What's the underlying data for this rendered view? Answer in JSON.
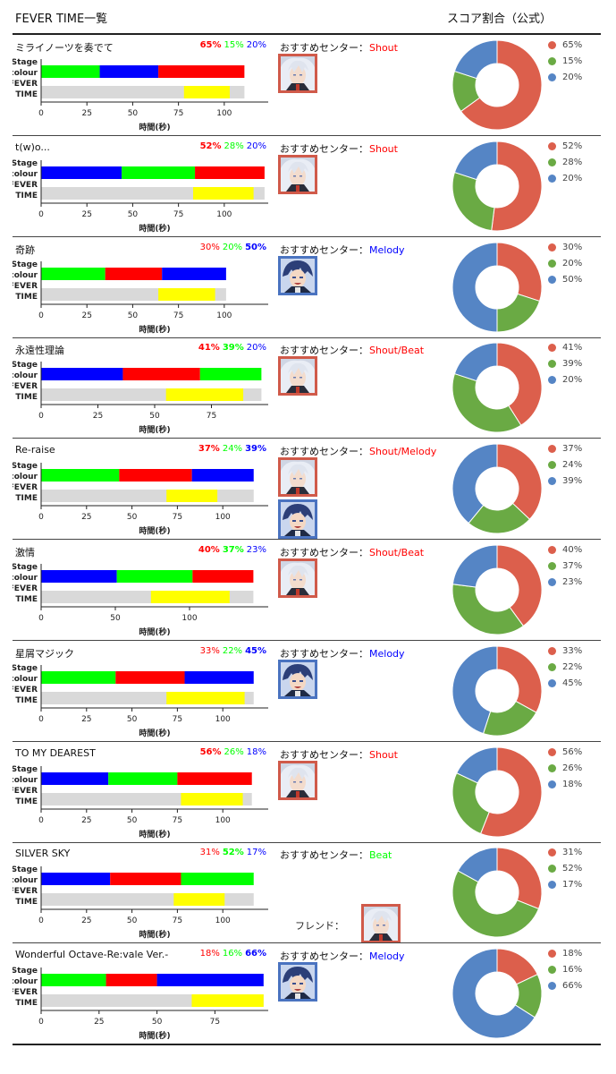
{
  "header": {
    "left": "FEVER TIME一覧",
    "right": "スコア割合（公式）"
  },
  "labels": {
    "stage_a": "Stage",
    "stage_b": "colour",
    "fever_a": "FEVER",
    "fever_b": "TIME",
    "xlabel": "時間(秒)",
    "recommend": "おすすめセンター：",
    "friend": "フレンド："
  },
  "colors": {
    "shout": "#ff0000",
    "beat": "#00ff00",
    "melody": "#0000ff",
    "fever": "#ffff00",
    "track": "#d9d9d9",
    "pie_shout": "#dc5f4c",
    "pie_beat": "#6aaa44",
    "pie_melody": "#5585c5",
    "avatar_red": "#d05a4a",
    "avatar_blue": "#4a73c0"
  },
  "chart_data": [
    {
      "type": "bar",
      "title": "ミライノーツを奏でて",
      "scores": {
        "shout": 65,
        "beat": 15,
        "melody": 20
      },
      "bold": [
        "shout"
      ],
      "stage_segments": [
        {
          "color": "beat",
          "from": 0,
          "to": 32
        },
        {
          "color": "melody",
          "from": 32,
          "to": 64
        },
        {
          "color": "shout",
          "from": 64,
          "to": 111
        }
      ],
      "fever": {
        "from": 78,
        "to": 103
      },
      "total": 111,
      "xlim": [
        0,
        124
      ],
      "ticks": [
        0,
        25,
        50,
        75,
        100
      ],
      "recommend": "Shout",
      "recommend_color": "shout",
      "avatars": [
        "red"
      ],
      "friend": false
    },
    {
      "type": "bar",
      "title": "t(w)o...",
      "scores": {
        "shout": 52,
        "beat": 28,
        "melody": 20
      },
      "bold": [
        "shout"
      ],
      "stage_segments": [
        {
          "color": "melody",
          "from": 0,
          "to": 44
        },
        {
          "color": "beat",
          "from": 44,
          "to": 84
        },
        {
          "color": "shout",
          "from": 84,
          "to": 122
        }
      ],
      "fever": {
        "from": 83,
        "to": 116
      },
      "total": 122,
      "xlim": [
        0,
        124
      ],
      "ticks": [
        0,
        25,
        50,
        75,
        100
      ],
      "recommend": "Shout",
      "recommend_color": "shout",
      "avatars": [
        "red"
      ],
      "friend": false
    },
    {
      "type": "bar",
      "title": "奇跡",
      "scores": {
        "shout": 30,
        "beat": 20,
        "melody": 50
      },
      "bold": [
        "melody"
      ],
      "stage_segments": [
        {
          "color": "beat",
          "from": 0,
          "to": 35
        },
        {
          "color": "shout",
          "from": 35,
          "to": 66
        },
        {
          "color": "melody",
          "from": 66,
          "to": 101
        }
      ],
      "fever": {
        "from": 64,
        "to": 95
      },
      "total": 101,
      "xlim": [
        0,
        124
      ],
      "ticks": [
        0,
        25,
        50,
        75,
        100
      ],
      "recommend": "Melody",
      "recommend_color": "melody",
      "avatars": [
        "blue"
      ],
      "friend": false
    },
    {
      "type": "bar",
      "title": "永遠性理論",
      "scores": {
        "shout": 41,
        "beat": 39,
        "melody": 20
      },
      "bold": [
        "shout",
        "beat"
      ],
      "stage_segments": [
        {
          "color": "melody",
          "from": 0,
          "to": 36
        },
        {
          "color": "shout",
          "from": 36,
          "to": 70
        },
        {
          "color": "beat",
          "from": 70,
          "to": 97
        }
      ],
      "fever": {
        "from": 55,
        "to": 89
      },
      "total": 97,
      "xlim": [
        0,
        100
      ],
      "ticks": [
        0,
        25,
        50,
        75
      ],
      "recommend": "Shout/Beat",
      "recommend_color": "shout",
      "avatars": [
        "red"
      ],
      "friend": false
    },
    {
      "type": "bar",
      "title": "Re-raise",
      "scores": {
        "shout": 37,
        "beat": 24,
        "melody": 39
      },
      "bold": [
        "shout",
        "melody"
      ],
      "stage_segments": [
        {
          "color": "beat",
          "from": 0,
          "to": 43
        },
        {
          "color": "shout",
          "from": 43,
          "to": 83
        },
        {
          "color": "melody",
          "from": 83,
          "to": 117
        }
      ],
      "fever": {
        "from": 69,
        "to": 97
      },
      "total": 117,
      "xlim": [
        0,
        125
      ],
      "ticks": [
        0,
        25,
        50,
        75,
        100
      ],
      "recommend": "Shout/Melody",
      "recommend_color": "shout",
      "avatars": [
        "red",
        "blue"
      ],
      "friend": false
    },
    {
      "type": "bar",
      "title": "激情",
      "scores": {
        "shout": 40,
        "beat": 37,
        "melody": 23
      },
      "bold": [
        "shout",
        "beat"
      ],
      "stage_segments": [
        {
          "color": "melody",
          "from": 0,
          "to": 51
        },
        {
          "color": "beat",
          "from": 51,
          "to": 102
        },
        {
          "color": "shout",
          "from": 102,
          "to": 143
        }
      ],
      "fever": {
        "from": 74,
        "to": 127
      },
      "total": 143,
      "xlim": [
        0,
        153
      ],
      "ticks": [
        0,
        50,
        100
      ],
      "recommend": "Shout/Beat",
      "recommend_color": "shout",
      "avatars": [
        "red"
      ],
      "friend": false
    },
    {
      "type": "bar",
      "title": "星屑マジック",
      "scores": {
        "shout": 33,
        "beat": 22,
        "melody": 45
      },
      "bold": [
        "melody"
      ],
      "stage_segments": [
        {
          "color": "beat",
          "from": 0,
          "to": 41
        },
        {
          "color": "shout",
          "from": 41,
          "to": 79
        },
        {
          "color": "melody",
          "from": 79,
          "to": 117
        }
      ],
      "fever": {
        "from": 69,
        "to": 112
      },
      "total": 117,
      "xlim": [
        0,
        125
      ],
      "ticks": [
        0,
        25,
        50,
        75,
        100
      ],
      "recommend": "Melody",
      "recommend_color": "melody",
      "avatars": [
        "blue"
      ],
      "friend": false
    },
    {
      "type": "bar",
      "title": "TO MY DEAREST",
      "scores": {
        "shout": 56,
        "beat": 26,
        "melody": 18
      },
      "bold": [
        "shout"
      ],
      "stage_segments": [
        {
          "color": "melody",
          "from": 0,
          "to": 37
        },
        {
          "color": "beat",
          "from": 37,
          "to": 75
        },
        {
          "color": "shout",
          "from": 75,
          "to": 116
        }
      ],
      "fever": {
        "from": 77,
        "to": 111
      },
      "total": 116,
      "xlim": [
        0,
        125
      ],
      "ticks": [
        0,
        25,
        50,
        75,
        100
      ],
      "recommend": "Shout",
      "recommend_color": "shout",
      "avatars": [
        "red"
      ],
      "friend": false
    },
    {
      "type": "bar",
      "title": "SILVER SKY",
      "scores": {
        "shout": 31,
        "beat": 52,
        "melody": 17
      },
      "bold": [
        "beat"
      ],
      "stage_segments": [
        {
          "color": "melody",
          "from": 0,
          "to": 38
        },
        {
          "color": "shout",
          "from": 38,
          "to": 77
        },
        {
          "color": "beat",
          "from": 77,
          "to": 117
        }
      ],
      "fever": {
        "from": 73,
        "to": 101
      },
      "total": 117,
      "xlim": [
        0,
        125
      ],
      "ticks": [
        0,
        25,
        50,
        75,
        100
      ],
      "recommend": "Beat",
      "recommend_color": "beat",
      "avatars": [],
      "friend": true
    },
    {
      "type": "bar",
      "title": "Wonderful Octave-Re:vale Ver.-",
      "scores": {
        "shout": 18,
        "beat": 16,
        "melody": 66
      },
      "bold": [
        "melody"
      ],
      "stage_segments": [
        {
          "color": "beat",
          "from": 0,
          "to": 28
        },
        {
          "color": "shout",
          "from": 28,
          "to": 50
        },
        {
          "color": "melody",
          "from": 50,
          "to": 96
        }
      ],
      "fever": {
        "from": 65,
        "to": 96
      },
      "total": 96,
      "xlim": [
        0,
        98
      ],
      "ticks": [
        0,
        25,
        50,
        75
      ],
      "recommend": "Melody",
      "recommend_color": "melody",
      "avatars": [
        "blue"
      ],
      "friend": false
    }
  ]
}
